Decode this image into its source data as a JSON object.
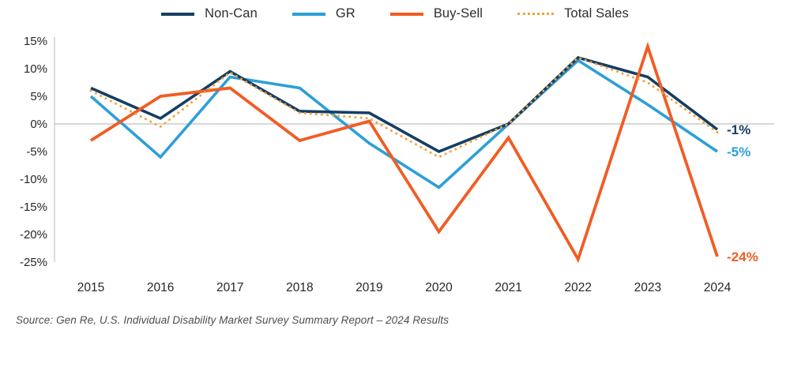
{
  "legend": [
    {
      "label": "Non-Can",
      "color": "#153e63",
      "style": "solid"
    },
    {
      "label": "GR",
      "color": "#2c9fd8",
      "style": "solid"
    },
    {
      "label": "Buy-Sell",
      "color": "#f15c24",
      "style": "solid"
    },
    {
      "label": "Total Sales",
      "color": "#f2a33b",
      "style": "dotted"
    }
  ],
  "chart_data": {
    "type": "line",
    "x": [
      "2015",
      "2016",
      "2017",
      "2018",
      "2019",
      "2020",
      "2021",
      "2022",
      "2023",
      "2024"
    ],
    "series": [
      {
        "name": "Non-Can",
        "color": "#153e63",
        "style": "solid",
        "width": 3.6,
        "values": [
          6.5,
          1,
          9.5,
          2.3,
          2,
          -5,
          0,
          12,
          8.5,
          -1
        ],
        "end_label": "-1%"
      },
      {
        "name": "GR",
        "color": "#2c9fd8",
        "style": "solid",
        "width": 3.6,
        "values": [
          5,
          -6,
          8.5,
          6.5,
          -3.5,
          -11.5,
          0,
          11.5,
          3.5,
          -5
        ],
        "end_label": "-5%"
      },
      {
        "name": "Buy-Sell",
        "color": "#f15c24",
        "style": "solid",
        "width": 3.8,
        "values": [
          -3,
          5,
          6.5,
          -3,
          0.5,
          -19.5,
          -2.5,
          -24.5,
          14,
          -24
        ],
        "end_label": "-24%"
      },
      {
        "name": "Total Sales",
        "color": "#f2a33b",
        "style": "dotted",
        "width": 3,
        "values": [
          6,
          -0.5,
          9.3,
          2,
          1,
          -6,
          0,
          12,
          7.5,
          -1.5
        ],
        "end_label": null
      }
    ],
    "ylim": [
      -25,
      15
    ],
    "ytick_step": 5,
    "ytick_suffix": "%",
    "grid": "zero-line-only",
    "legend_position": "top-center",
    "title": "",
    "xlabel": "",
    "ylabel": ""
  },
  "source": "Source: Gen Re, U.S. Individual Disability Market Survey Summary Report – 2024 Results",
  "colors": {
    "axis_line": "#c8c8c8",
    "zero_line": "#bfbfbf",
    "tick_text": "#262626",
    "legend_text": "#2e2e2e",
    "source_text": "#4d4d4d",
    "background": "#ffffff"
  }
}
